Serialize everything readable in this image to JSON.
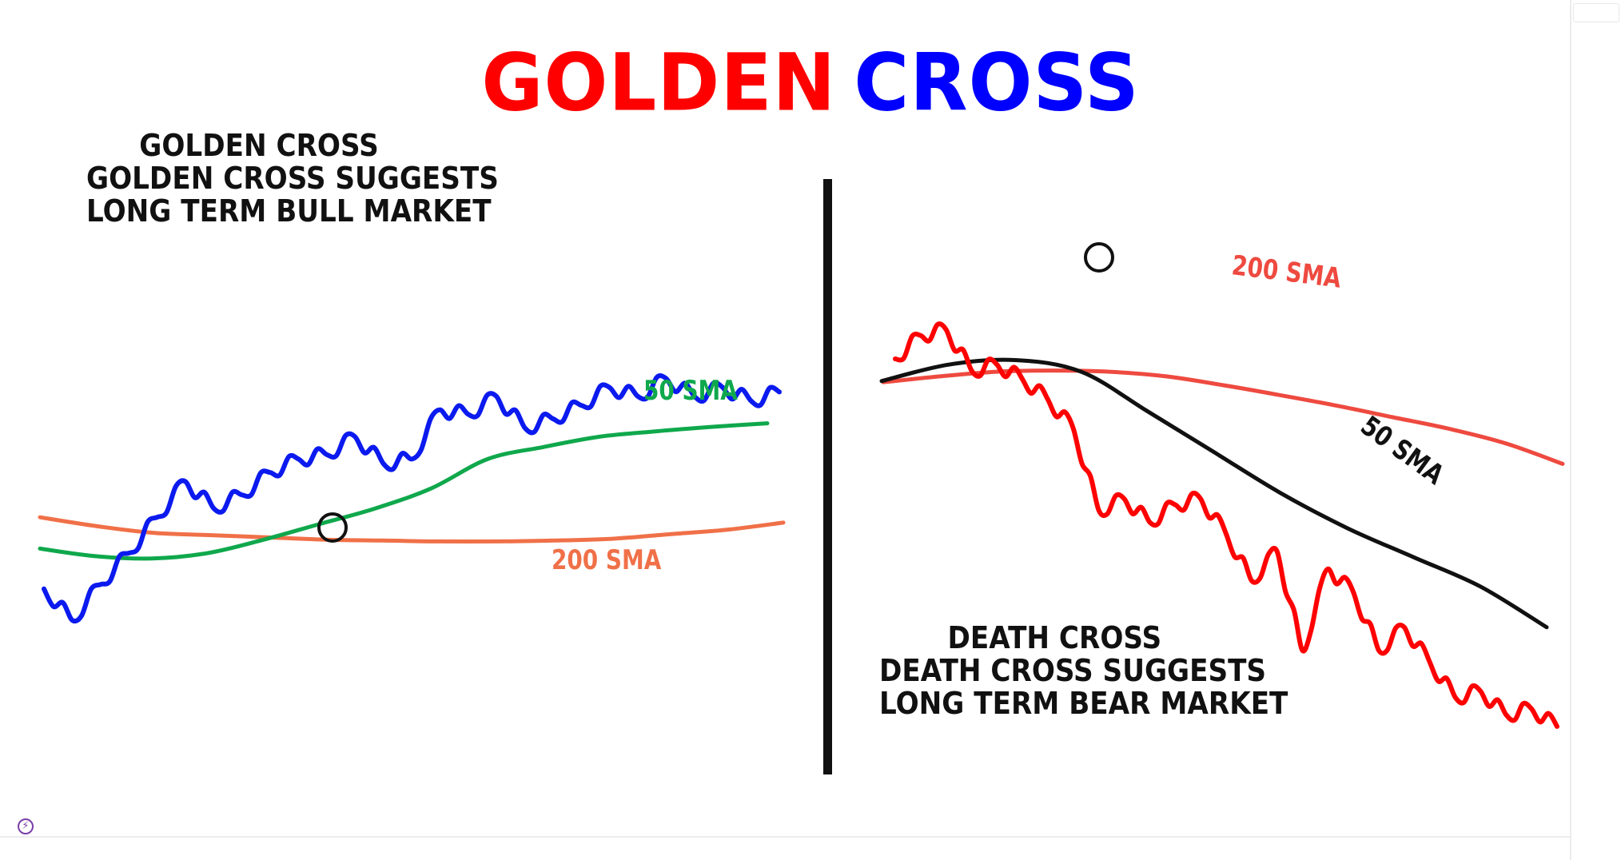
{
  "title": {
    "part1": "GOLDEN",
    "part2": "CROSS",
    "color1": "#ff0000",
    "color2": "#0000ff"
  },
  "left_panel": {
    "lines": [
      "GOLDEN CROSS",
      "GOLDEN CROSS SUGGESTS",
      "LONG TERM BULL MARKET"
    ]
  },
  "right_panel": {
    "lines": [
      "DEATH CROSS",
      "DEATH CROSS SUGGESTS",
      "LONG TERM BEAR MARKET"
    ]
  },
  "chart_data": [
    {
      "type": "line",
      "series": [
        {
          "name": "200 SMA",
          "color": "#f07048",
          "values": [
            0.62,
            0.64,
            0.655,
            0.66,
            0.665,
            0.67,
            0.672,
            0.674,
            0.674,
            0.672,
            0.668,
            0.658,
            0.648,
            0.632
          ]
        },
        {
          "name": "50 SMA",
          "color": "#0fa84c",
          "values": [
            0.69,
            0.707,
            0.712,
            0.7,
            0.67,
            0.635,
            0.6,
            0.555,
            0.49,
            0.463,
            0.44,
            0.428,
            0.418,
            0.41
          ]
        },
        {
          "name": "",
          "color": "#0b1aee",
          "values": [
            0.78,
            0.85,
            0.77,
            0.7,
            0.62,
            0.54,
            0.6,
            0.57,
            0.52,
            0.49,
            0.48,
            0.44,
            0.5,
            0.49,
            0.38,
            0.39,
            0.35,
            0.42,
            0.4,
            0.37,
            0.33,
            0.35,
            0.31,
            0.35,
            0.33,
            0.36,
            0.34
          ]
        }
      ],
      "annotations": [
        "50 SMA",
        "200 SMA"
      ]
    },
    {
      "type": "line",
      "series": [
        {
          "name": "200 SMA",
          "color": "#ee4a40",
          "values": [
            0.34,
            0.33,
            0.322,
            0.32,
            0.322,
            0.33,
            0.345,
            0.362,
            0.38,
            0.4,
            0.42,
            0.445,
            0.48
          ]
        },
        {
          "name": "50 SMA",
          "color": "#111111",
          "values": [
            0.338,
            0.31,
            0.302,
            0.322,
            0.39,
            0.46,
            0.53,
            0.59,
            0.64,
            0.69,
            0.76
          ]
        },
        {
          "name": "",
          "color": "#ff0000",
          "values": [
            0.3,
            0.26,
            0.25,
            0.32,
            0.31,
            0.335,
            0.37,
            0.42,
            0.56,
            0.54,
            0.58,
            0.55,
            0.54,
            0.6,
            0.68,
            0.63,
            0.8,
            0.66,
            0.7,
            0.8,
            0.76,
            0.82,
            0.88,
            0.87,
            0.91,
            0.9,
            0.93
          ]
        }
      ],
      "annotations": [
        "200 SMA",
        "50 SMA"
      ]
    }
  ]
}
